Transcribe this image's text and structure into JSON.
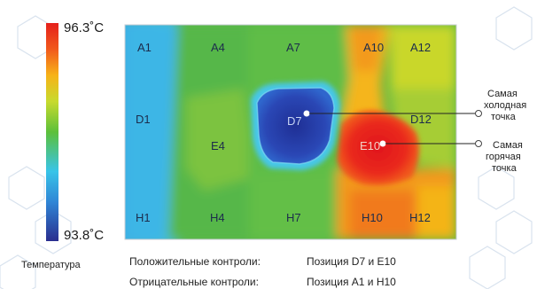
{
  "scale": {
    "max_label": "96.3˚C",
    "min_label": "93.8˚C",
    "caption": "Температура",
    "max_value": 96.3,
    "min_value": 93.8,
    "colors": [
      "#2a2e8f",
      "#2f86d6",
      "#38c4e8",
      "#5cc03a",
      "#c7da2e",
      "#f7b318",
      "#f1591c",
      "#e5201c"
    ]
  },
  "wells": [
    "A1",
    "A4",
    "A7",
    "A10",
    "A12",
    "D1",
    "D7",
    "D12",
    "E4",
    "E10",
    "H1",
    "H4",
    "H7",
    "H10",
    "H12"
  ],
  "callouts": {
    "coldest": [
      "Самая",
      "холодная",
      "точка"
    ],
    "hottest": [
      "Самая",
      "горячая",
      "точка"
    ]
  },
  "footer": {
    "positive_label": "Положительные  контроли:",
    "positive_value": "Позиция  D7 и  E10",
    "negative_label": "Отрицательные  контроли:",
    "negative_value": "Позиция  A1 и H10"
  }
}
